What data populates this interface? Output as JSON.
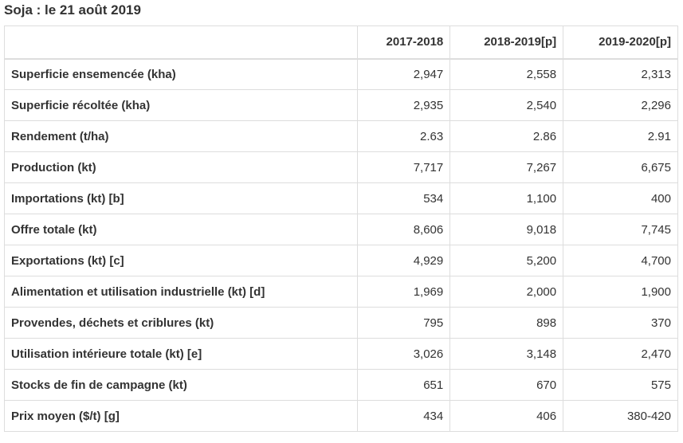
{
  "title": "Soja : le 21 août 2019",
  "columns": [
    "",
    "2017-2018",
    "2018-2019[p]",
    "2019-2020[p]"
  ],
  "rows": [
    {
      "label": "Superficie ensemencée (kha)",
      "values": [
        "2,947",
        "2,558",
        "2,313"
      ]
    },
    {
      "label": "Superficie récoltée (kha)",
      "values": [
        "2,935",
        "2,540",
        "2,296"
      ]
    },
    {
      "label": "Rendement (t/ha)",
      "values": [
        "2.63",
        "2.86",
        "2.91"
      ]
    },
    {
      "label": "Production (kt)",
      "values": [
        "7,717",
        "7,267",
        "6,675"
      ]
    },
    {
      "label": "Importations (kt) [b]",
      "values": [
        "534",
        "1,100",
        "400"
      ]
    },
    {
      "label": "Offre totale (kt)",
      "values": [
        "8,606",
        "9,018",
        "7,745"
      ]
    },
    {
      "label": "Exportations (kt) [c]",
      "values": [
        "4,929",
        "5,200",
        "4,700"
      ]
    },
    {
      "label": "Alimentation et utilisation industrielle (kt) [d]",
      "values": [
        "1,969",
        "2,000",
        "1,900"
      ]
    },
    {
      "label": "Provendes, déchets et criblures (kt)",
      "values": [
        "795",
        "898",
        "370"
      ]
    },
    {
      "label": "Utilisation intérieure totale (kt) [e]",
      "values": [
        "3,026",
        "3,148",
        "2,470"
      ]
    },
    {
      "label": "Stocks de fin de campagne (kt)",
      "values": [
        "651",
        "670",
        "575"
      ]
    },
    {
      "label": "Prix moyen ($/t) [g]",
      "values": [
        "434",
        "406",
        "380-420"
      ]
    }
  ]
}
